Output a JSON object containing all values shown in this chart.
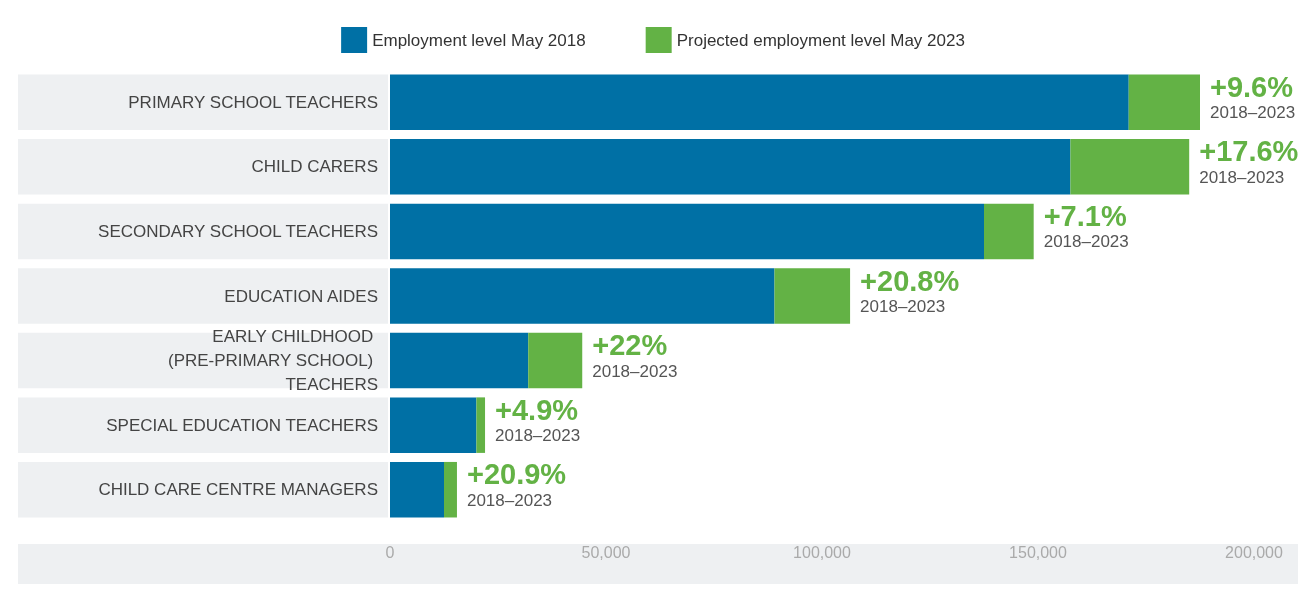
{
  "chart_data": {
    "type": "bar",
    "orientation": "horizontal",
    "stacked": true,
    "categories": [
      "PRIMARY SCHOOL TEACHERS",
      "CHILD CARERS",
      "SECONDARY SCHOOL TEACHERS",
      "EDUCATION AIDES",
      "EARLY CHILDHOOD (PRE-PRIMARY SCHOOL) TEACHERS",
      "SPECIAL EDUCATION TEACHERS",
      "CHILD CARE CENTRE MANAGERS"
    ],
    "series": [
      {
        "name": "Employment level May 2018",
        "color": "#0070a5",
        "values": [
          171000,
          157500,
          137500,
          89000,
          32000,
          20000,
          12500
        ]
      },
      {
        "name": "Projected employment level May 2023",
        "color": "#63b245",
        "values": [
          16500,
          27500,
          11500,
          17500,
          12500,
          2000,
          3000
        ]
      }
    ],
    "xlim": [
      0,
      200000
    ],
    "xticks": [
      0,
      {
        "value": 50000,
        "label": "50,000"
      },
      {
        "value": 100000,
        "label": "100,000"
      },
      {
        "value": 150000,
        "label": "150,000"
      },
      {
        "value": 200000,
        "label": "200,000"
      }
    ],
    "legend": "top",
    "grid": false,
    "annotations": [
      {
        "text": "+9.6%",
        "x": 187500,
        "y": "PRIMARY SCHOOL TEACHERS"
      },
      {
        "text": "2018–2023",
        "x": 187500,
        "y": "PRIMARY SCHOOL TEACHERS"
      },
      {
        "text": "+17.6%",
        "x": 185000,
        "y": "CHILD CARERS"
      },
      {
        "text": "2018–2023",
        "x": 185000,
        "y": "CHILD CARERS"
      },
      {
        "text": "+7.1%",
        "x": 149000,
        "y": "SECONDARY SCHOOL TEACHERS"
      },
      {
        "text": "2018–2023",
        "x": 149000,
        "y": "SECONDARY SCHOOL TEACHERS"
      },
      {
        "text": "+20.8%",
        "x": 106500,
        "y": "EDUCATION AIDES"
      },
      {
        "text": "2018–2023",
        "x": 106500,
        "y": "EDUCATION AIDES"
      },
      {
        "text": "+22%",
        "x": 44500,
        "y": "EARLY CHILDHOOD (PRE-PRIMARY SCHOOL) TEACHERS"
      },
      {
        "text": "2018–2023",
        "x": 44500,
        "y": "EARLY CHILDHOOD (PRE-PRIMARY SCHOOL) TEACHERS"
      },
      {
        "text": "+4.9%",
        "x": 22000,
        "y": "SPECIAL EDUCATION TEACHERS"
      },
      {
        "text": "2018–2023",
        "x": 22000,
        "y": "SPECIAL EDUCATION TEACHERS"
      },
      {
        "text": "+20.9%",
        "x": 15500,
        "y": "CHILD CARE CENTRE MANAGERS"
      },
      {
        "text": "2018–2023",
        "x": 15500,
        "y": "CHILD CARE CENTRE MANAGERS"
      }
    ]
  }
}
